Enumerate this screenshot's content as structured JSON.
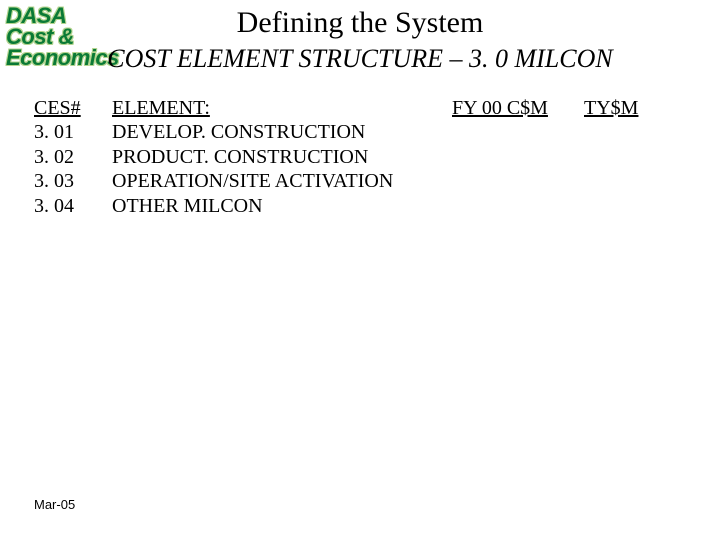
{
  "logo": {
    "line1": "DASA",
    "line2": "Cost &",
    "line3": "Economics",
    "text_color": "#0a7a36",
    "outline_color": "#b3d48f"
  },
  "title": "Defining the System",
  "subtitle": "COST ELEMENT STRUCTURE – 3. 0 MILCON",
  "table": {
    "headers": {
      "ces": "CES#",
      "element": "ELEMENT:",
      "fy": "FY 00 C$M",
      "ty": "TY$M"
    },
    "rows": [
      {
        "ces": "3. 01",
        "element": "DEVELOP. CONSTRUCTION"
      },
      {
        "ces": "3. 02",
        "element": "PRODUCT. CONSTRUCTION"
      },
      {
        "ces": "3. 03",
        "element": "OPERATION/SITE ACTIVATION"
      },
      {
        "ces": "3. 04",
        "element": "OTHER MILCON"
      }
    ]
  },
  "footer": {
    "date": "Mar-05"
  },
  "styling": {
    "background_color": "#ffffff",
    "text_color": "#000000",
    "title_fontsize": 30,
    "subtitle_fontsize": 26,
    "body_fontsize": 20,
    "footer_fontsize": 13,
    "font_family": "Times New Roman"
  }
}
